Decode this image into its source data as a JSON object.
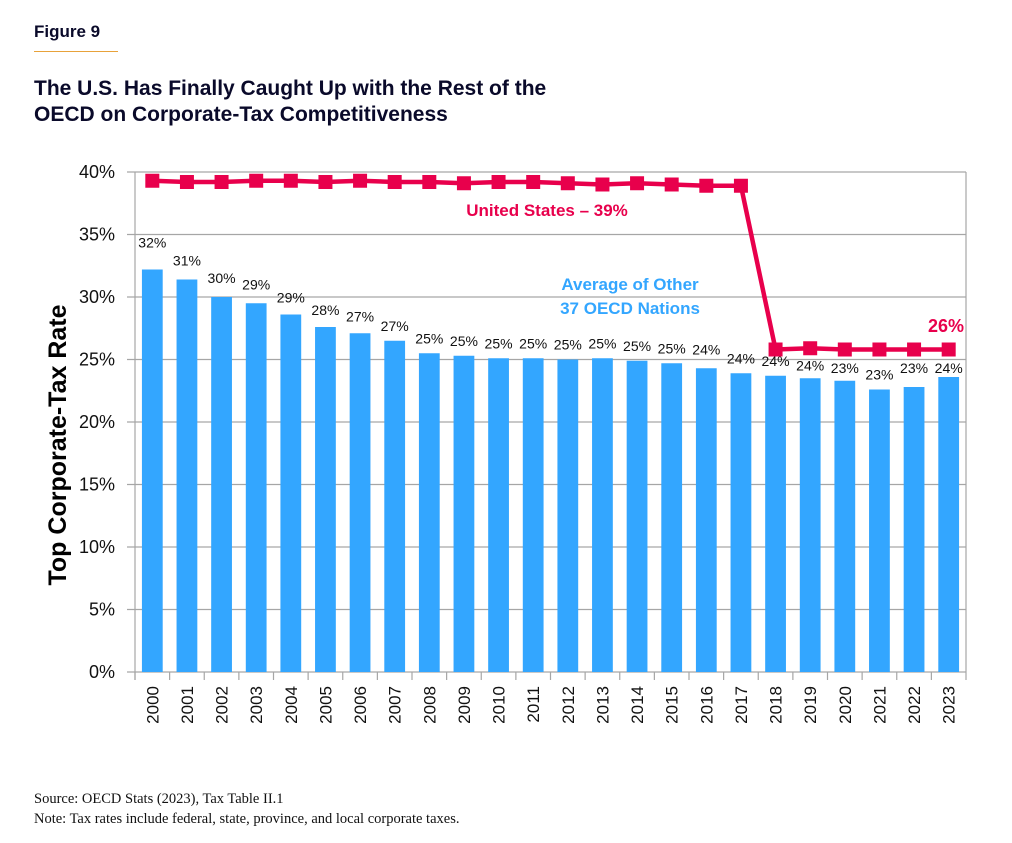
{
  "figure_label": "Figure 9",
  "title_line1": "The U.S. Has Finally Caught Up with the Rest of the",
  "title_line2": "OECD on Corporate-Tax Competitiveness",
  "footer": {
    "source": "Source: OECD Stats (2023), Tax Table II.1",
    "note": "Note: Tax rates include federal, state, province, and local corporate taxes."
  },
  "colors": {
    "bars": "#33a6ff",
    "us_line": "#e8004c",
    "title": "#0a0a2a",
    "rule": "#e8a23a",
    "grid": "#a6a6a6"
  },
  "chart_data": {
    "type": "bar",
    "title": "The U.S. Has Finally Caught Up with the Rest of the OECD on Corporate-Tax Competitiveness",
    "xlabel": "",
    "ylabel": "Top Corporate-Tax Rate",
    "ylim": [
      0,
      40
    ],
    "yticks": [
      0,
      5,
      10,
      15,
      20,
      25,
      30,
      35,
      40
    ],
    "ytick_labels": [
      "0%",
      "5%",
      "10%",
      "15%",
      "20%",
      "25%",
      "30%",
      "35%",
      "40%"
    ],
    "grid": "horizontal",
    "categories": [
      "2000",
      "2001",
      "2002",
      "2003",
      "2004",
      "2005",
      "2006",
      "2007",
      "2008",
      "2009",
      "2010",
      "2011",
      "2012",
      "2013",
      "2014",
      "2015",
      "2016",
      "2017",
      "2018",
      "2019",
      "2020",
      "2021",
      "2022",
      "2023"
    ],
    "series": [
      {
        "name": "Average of Other 37 OECD Nations",
        "type": "bar",
        "values": [
          32.2,
          31.4,
          30.0,
          29.5,
          28.6,
          27.6,
          27.1,
          26.5,
          25.5,
          25.3,
          25.1,
          25.1,
          25.0,
          25.1,
          24.9,
          24.7,
          24.3,
          23.9,
          23.7,
          23.5,
          23.3,
          22.6,
          22.8,
          23.6
        ],
        "data_labels": [
          "32%",
          "31%",
          "30%",
          "29%",
          "29%",
          "28%",
          "27%",
          "27%",
          "25%",
          "25%",
          "25%",
          "25%",
          "25%",
          "25%",
          "25%",
          "25%",
          "24%",
          "24%",
          "24%",
          "24%",
          "23%",
          "23%",
          "23%",
          "24%"
        ]
      },
      {
        "name": "United States",
        "type": "line",
        "marker": "square",
        "values": [
          39.3,
          39.2,
          39.2,
          39.3,
          39.3,
          39.2,
          39.3,
          39.2,
          39.2,
          39.1,
          39.2,
          39.2,
          39.1,
          39.0,
          39.1,
          39.0,
          38.9,
          38.9,
          25.8,
          25.9,
          25.8,
          25.8,
          25.8,
          25.8
        ]
      }
    ],
    "annotations": [
      {
        "text": "United States – 39%",
        "series": "United States"
      },
      {
        "text": "Average of Other",
        "series": "Average of Other 37 OECD Nations"
      },
      {
        "text": "37 OECD Nations",
        "series": "Average of Other 37 OECD Nations"
      },
      {
        "text": "26%",
        "series": "United States"
      }
    ]
  }
}
